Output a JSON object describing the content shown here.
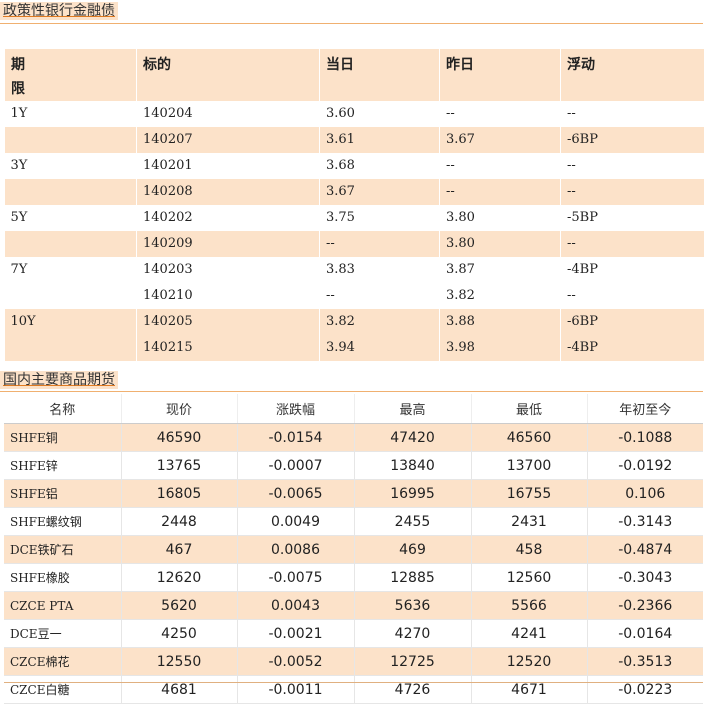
{
  "sections": {
    "bonds_title": "政策性银行金融债",
    "futures_title": "国内主要商品期货"
  },
  "bonds": {
    "headers": {
      "term_line1": "期",
      "term_line2": "限",
      "code": "标的",
      "today": "当日",
      "yesterday": "昨日",
      "change": "浮动"
    },
    "rows": [
      {
        "term": "1Y",
        "code": "140204",
        "today": "3.60",
        "yesterday": "--",
        "change": "--"
      },
      {
        "term": "",
        "code": "140207",
        "today": "3.61",
        "yesterday": "3.67",
        "change": "-6BP"
      },
      {
        "term": "3Y",
        "code": "140201",
        "today": "3.68",
        "yesterday": "--",
        "change": "--"
      },
      {
        "term": "",
        "code": "140208",
        "today": "3.67",
        "yesterday": "--",
        "change": "--"
      },
      {
        "term": "5Y",
        "code": "140202",
        "today": "3.75",
        "yesterday": "3.80",
        "change": "-5BP"
      },
      {
        "term": "",
        "code": "140209",
        "today": "--",
        "yesterday": "3.80",
        "change": "--"
      },
      {
        "term": "7Y",
        "code": "140203",
        "today": "3.83",
        "yesterday": "3.87",
        "change": "-4BP"
      },
      {
        "term": "",
        "code": "140210",
        "today": "--",
        "yesterday": "3.82",
        "change": "--"
      },
      {
        "term": "10Y",
        "code": "140205",
        "today": "3.82",
        "yesterday": "3.88",
        "change": "-6BP"
      },
      {
        "term": "",
        "code": "140215",
        "today": "3.94",
        "yesterday": "3.98",
        "change": "-4BP"
      }
    ]
  },
  "futures": {
    "headers": [
      "名称",
      "现价",
      "涨跌幅",
      "最高",
      "最低",
      "年初至今"
    ],
    "rows": [
      [
        "SHFE铜",
        "46590",
        "-0.0154",
        "47420",
        "46560",
        "-0.1088"
      ],
      [
        "SHFE锌",
        "13765",
        "-0.0007",
        "13840",
        "13700",
        "-0.0192"
      ],
      [
        "SHFE铝",
        "16805",
        "-0.0065",
        "16995",
        "16755",
        "0.106"
      ],
      [
        "SHFE螺纹钢",
        "2448",
        "0.0049",
        "2455",
        "2431",
        "-0.3143"
      ],
      [
        "DCE铁矿石",
        "467",
        "0.0086",
        "469",
        "458",
        "-0.4874"
      ],
      [
        "SHFE橡胶",
        "12620",
        "-0.0075",
        "12885",
        "12560",
        "-0.3043"
      ],
      [
        "CZCE PTA",
        "5620",
        "0.0043",
        "5636",
        "5566",
        "-0.2366"
      ],
      [
        "DCE豆一",
        "4250",
        "-0.0021",
        "4270",
        "4241",
        "-0.0164"
      ],
      [
        "CZCE棉花",
        "12550",
        "-0.0052",
        "12725",
        "12520",
        "-0.3513"
      ],
      [
        "CZCE白糖",
        "4681",
        "-0.0011",
        "4726",
        "4671",
        "-0.0223"
      ]
    ]
  },
  "colors": {
    "shade": "#fce2c9",
    "accent_line": "#f0b070"
  }
}
